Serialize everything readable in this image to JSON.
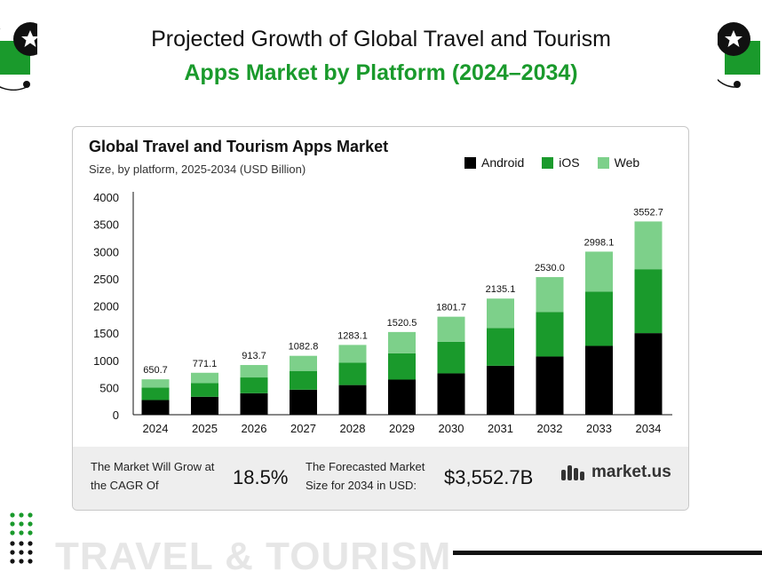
{
  "header": {
    "title_line1": "Projected Growth of Global Travel and Tourism",
    "title_line2": "Apps Market by Platform (2024–2034)"
  },
  "chart_data": {
    "type": "bar",
    "stacked": true,
    "title": "Global Travel and Tourism Apps Market",
    "subtitle": "Size, by platform, 2025-2034 (USD Billion)",
    "categories": [
      "2024",
      "2025",
      "2026",
      "2027",
      "2028",
      "2029",
      "2030",
      "2031",
      "2032",
      "2033",
      "2034"
    ],
    "totals": [
      650.7,
      771.1,
      913.7,
      1082.8,
      1283.1,
      1520.5,
      1801.7,
      2135.1,
      2530.0,
      2998.1,
      3552.7
    ],
    "total_labels": [
      "650.7",
      "771.1",
      "913.7",
      "1082.8",
      "1283.1",
      "1520.5",
      "1801.7",
      "2135.1",
      "2530.0",
      "2998.1",
      "3552.7"
    ],
    "series": [
      {
        "name": "Android",
        "color": "#000000",
        "values": [
          270,
          330,
          395,
          460,
          545,
          645,
          760,
          900,
          1070,
          1265,
          1500
        ]
      },
      {
        "name": "iOS",
        "color": "#1a9a2c",
        "values": [
          230,
          250,
          290,
          345,
          410,
          485,
          580,
          695,
          820,
          1000,
          1175
        ]
      },
      {
        "name": "Web",
        "color": "#7dd08a",
        "values": [
          150.7,
          191.1,
          228.7,
          277.8,
          328.1,
          390.5,
          461.7,
          540.1,
          640.0,
          733.1,
          877.7
        ]
      }
    ],
    "y_ticks": [
      "0",
      "500",
      "1000",
      "1500",
      "2000",
      "2500",
      "3000",
      "3500",
      "4000"
    ],
    "ylim": [
      0,
      4000
    ],
    "legend_position": "top-right",
    "grid": false
  },
  "footer": {
    "cagr_label": "The Market Will Grow at the CAGR Of",
    "cagr_value": "18.5%",
    "forecast_label": "The Forecasted Market Size for 2034 in USD:",
    "forecast_value": "$3,552.7B",
    "brand": "market.us"
  },
  "decor": {
    "bottom_text": "TRAVEL & TOURISM"
  },
  "icons": {
    "badge": "star-badge-icon",
    "brand_logo": "market-us-logo-icon",
    "dots": "dot-grid-icon"
  }
}
